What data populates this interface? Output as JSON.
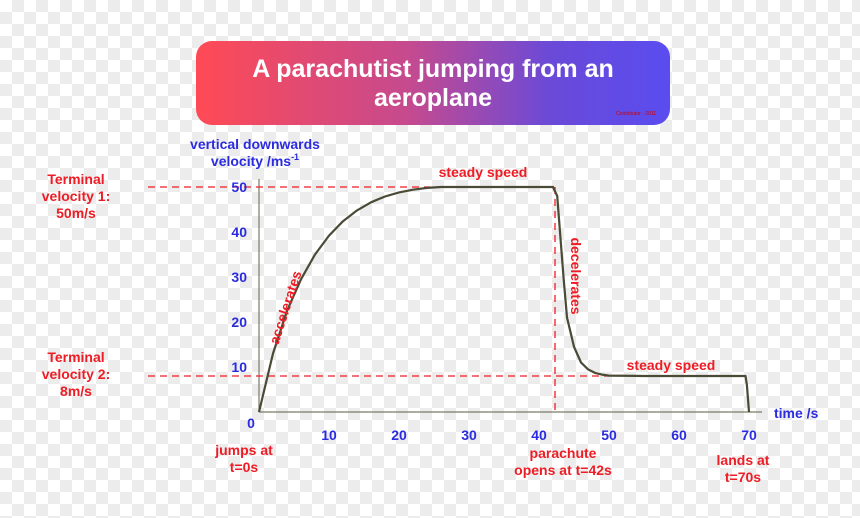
{
  "banner": {
    "title": "A parachutist jumping from an aeroplane",
    "credit": "Contributor - 2011"
  },
  "chart_data": {
    "type": "line",
    "title": "A parachutist jumping from an aeroplane",
    "xlabel": "time /s",
    "ylabel": "vertical downwards velocity /ms-1",
    "xlim": [
      0,
      70
    ],
    "ylim": [
      0,
      50
    ],
    "x_ticks": [
      0,
      10,
      20,
      30,
      40,
      50,
      60,
      70
    ],
    "y_ticks": [
      10,
      20,
      30,
      40,
      50
    ],
    "grid": false,
    "series": [
      {
        "x": [
          0,
          2,
          4,
          6,
          8,
          10,
          12,
          14,
          16,
          18,
          20,
          22,
          24,
          26,
          30,
          35,
          40,
          42,
          42.6,
          43,
          43.5,
          44,
          45,
          46,
          47,
          48,
          49,
          50,
          55,
          60,
          65,
          69.5,
          69.7,
          70
        ],
        "y": [
          0,
          13,
          22.5,
          29.5,
          35,
          39.2,
          42.4,
          44.8,
          46.6,
          47.9,
          48.8,
          49.4,
          49.8,
          50,
          50,
          50,
          50,
          50,
          48,
          40,
          30,
          21,
          14.5,
          11,
          9.5,
          8.7,
          8.3,
          8.1,
          8,
          8,
          8,
          8,
          6,
          0
        ]
      }
    ],
    "annotations": {
      "steady_speed_1": "steady speed",
      "steady_speed_2": "steady speed",
      "accelerates": "accelerates",
      "decelerates": "decelerates",
      "terminal_1": [
        "Terminal",
        "velocity 1:",
        "50m/s"
      ],
      "terminal_2": [
        "Terminal",
        "velocity 2:",
        "8m/s"
      ],
      "jumps": [
        "jumps at",
        "t=0s"
      ],
      "parachute": [
        "parachute",
        "opens at t=42s"
      ],
      "lands": [
        "lands at",
        "t=70s"
      ]
    },
    "colors": {
      "axis_text": "#2b2bdf",
      "annotation": "#ee1c24",
      "curve": "#4a4a36",
      "axes": "#7a7a66"
    }
  }
}
